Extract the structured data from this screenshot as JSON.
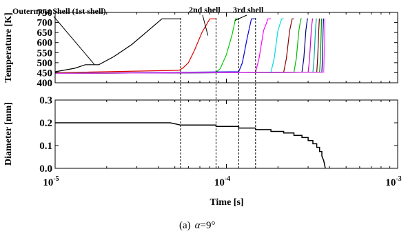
{
  "chart_data": [
    {
      "type": "line",
      "xscale": "log",
      "xlim": [
        1e-05,
        0.001
      ],
      "ylim": [
        400,
        750
      ],
      "ylabel": "Temperature [K]",
      "yticks": [
        400,
        450,
        500,
        550,
        600,
        650,
        700,
        750
      ],
      "grid": false,
      "annotations": [
        {
          "text": "Outermost Shell (1st shell)",
          "x": 1.7e-05,
          "y": 490
        },
        {
          "text": "2nd shell",
          "x": 7.8e-05,
          "y": 635
        },
        {
          "text": "3rd shell",
          "x": 0.000112,
          "y": 710
        }
      ],
      "series": [
        {
          "color": "#000000",
          "x": [
            1e-05,
            1.3e-05,
            1.5e-05,
            1.8e-05,
            2.2e-05,
            2.8e-05,
            3.5e-05,
            4.2e-05,
            4.7e-05,
            5.4e-05
          ],
          "y": [
            455,
            472,
            490,
            490,
            530,
            590,
            660,
            718,
            718,
            718
          ]
        },
        {
          "color": "#e00000",
          "x": [
            1e-05,
            5.3e-05,
            5.6e-05,
            6e-05,
            6.5e-05,
            7.2e-05,
            8e-05,
            8.7e-05
          ],
          "y": [
            450,
            462,
            475,
            500,
            560,
            650,
            718,
            718
          ]
        },
        {
          "color": "#00cc00",
          "x": [
            1e-05,
            8.7e-05,
            9.2e-05,
            0.0001,
            0.000108,
            0.000113,
            0.000118
          ],
          "y": [
            448,
            452,
            470,
            540,
            640,
            718,
            718
          ]
        },
        {
          "color": "#0000dd",
          "x": [
            1e-05,
            0.000118,
            0.000124,
            0.000132,
            0.00014,
            0.000148
          ],
          "y": [
            447,
            455,
            500,
            620,
            718,
            718
          ]
        },
        {
          "color": "#ff00ff",
          "x": [
            1e-05,
            0.000148,
            0.000155,
            0.000165,
            0.000175,
            0.000182
          ],
          "y": [
            447,
            452,
            520,
            660,
            718,
            718
          ]
        },
        {
          "color": "#00dddd",
          "x": [
            1e-05,
            0.000182,
            0.00019,
            0.0002,
            0.00021,
            0.000216
          ],
          "y": [
            447,
            452,
            520,
            660,
            718,
            718
          ]
        },
        {
          "color": "#880000",
          "x": [
            1e-05,
            0.000216,
            0.000224,
            0.000234,
            0.000242,
            0.000248
          ],
          "y": [
            447,
            452,
            520,
            660,
            718,
            718
          ]
        },
        {
          "color": "#00bb00",
          "x": [
            1e-05,
            0.000248,
            0.000256,
            0.000265,
            0.000272,
            0.000276
          ],
          "y": [
            447,
            452,
            520,
            660,
            718,
            718
          ]
        },
        {
          "color": "#000077",
          "x": [
            1e-05,
            0.000276,
            0.000283,
            0.000291,
            0.000297,
            0.0003
          ],
          "y": [
            447,
            452,
            520,
            660,
            718,
            718
          ]
        },
        {
          "color": "#cc00cc",
          "x": [
            1e-05,
            0.0003,
            0.000306,
            0.000313,
            0.000318,
            0.00032
          ],
          "y": [
            447,
            452,
            520,
            660,
            718,
            718
          ]
        },
        {
          "color": "#00aaaa",
          "x": [
            1e-05,
            0.00032,
            0.000325,
            0.000331,
            0.000335,
            0.000337
          ],
          "y": [
            447,
            452,
            520,
            660,
            718,
            718
          ]
        },
        {
          "color": "#660000",
          "x": [
            1e-05,
            0.000337,
            0.000341,
            0.000346,
            0.000349,
            0.00035
          ],
          "y": [
            447,
            452,
            520,
            660,
            718,
            718
          ]
        },
        {
          "color": "#009900",
          "x": [
            1e-05,
            0.00035,
            0.000354,
            0.000358,
            0.00036,
            0.000361
          ],
          "y": [
            447,
            452,
            520,
            660,
            718,
            718
          ]
        },
        {
          "color": "#000099",
          "x": [
            1e-05,
            0.000361,
            0.000364,
            0.000367,
            0.000369,
            0.00037
          ],
          "y": [
            447,
            452,
            520,
            660,
            718,
            718
          ]
        },
        {
          "color": "#ff44ff",
          "x": [
            1e-05,
            0.00037,
            0.000372,
            0.000375,
            0.000376,
            0.000377
          ],
          "y": [
            447,
            452,
            520,
            660,
            718,
            718
          ]
        }
      ]
    },
    {
      "type": "line",
      "xscale": "log",
      "xlim": [
        1e-05,
        0.001
      ],
      "ylim": [
        0.0,
        0.3
      ],
      "xlabel": "Time [s]",
      "ylabel": "Diameter [mm]",
      "yticks": [
        "0.0",
        "0.1",
        "0.2",
        "0.3"
      ],
      "xticks": [
        {
          "value": 1e-05,
          "base": "10",
          "exp": "-5"
        },
        {
          "value": 0.0001,
          "base": "10",
          "exp": "-4"
        },
        {
          "value": 0.001,
          "base": "10",
          "exp": "-3"
        }
      ],
      "grid": false,
      "series": [
        {
          "color": "#000000",
          "x": [
            1e-05,
            4.7e-05,
            5.4e-05,
            8.7e-05,
            8.7e-05,
            0.000118,
            0.000118,
            0.000148,
            0.000148,
            0.000182,
            0.000182,
            0.000216,
            0.000216,
            0.000248,
            0.000248,
            0.000276,
            0.000276,
            0.0003,
            0.0003,
            0.00032,
            0.00032,
            0.000337,
            0.000337,
            0.00035,
            0.00035,
            0.000361,
            0.000361,
            0.00037,
            0.000375,
            0.000378
          ],
          "y": [
            0.2,
            0.2,
            0.19,
            0.19,
            0.184,
            0.184,
            0.177,
            0.177,
            0.17,
            0.17,
            0.162,
            0.162,
            0.155,
            0.155,
            0.145,
            0.145,
            0.135,
            0.135,
            0.122,
            0.122,
            0.108,
            0.108,
            0.092,
            0.092,
            0.074,
            0.074,
            0.054,
            0.034,
            0.014,
            0.0
          ]
        }
      ]
    }
  ],
  "shell_markers": [
    5.4e-05,
    8.7e-05,
    0.000118,
    0.000148
  ],
  "caption": {
    "prefix": "(a)",
    "symbol": "α",
    "value": "=9°"
  }
}
